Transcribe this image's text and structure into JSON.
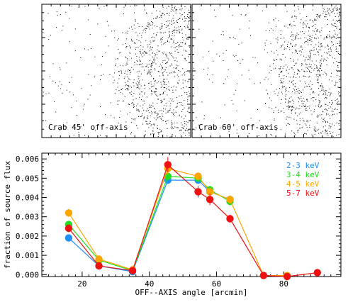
{
  "panels": [
    {
      "label": "Crab 45' off-axis"
    },
    {
      "label": "Crab 60' off-axis"
    }
  ],
  "chart_data": {
    "type": "line",
    "xlabel": "OFF--AXIS angle [arcmin]",
    "ylabel": "fraction of source flux",
    "xlim": [
      8,
      97
    ],
    "ylim": [
      -0.0001,
      0.0063
    ],
    "x_ticks": [
      20,
      40,
      60,
      80
    ],
    "y_ticks": [
      0.0,
      0.001,
      0.002,
      0.003,
      0.004,
      0.005,
      0.006
    ],
    "y_tick_labels": [
      "0.000",
      "0.001",
      "0.002",
      "0.003",
      "0.004",
      "0.005",
      "0.006"
    ],
    "legend_position": "top-right",
    "series": [
      {
        "name": "2-3 keV",
        "color": "#1e90ff",
        "x": [
          16,
          25,
          35,
          45.5,
          54.5,
          58,
          64
        ],
        "y": [
          0.0019,
          0.00045,
          0.00015,
          0.0049,
          0.0049,
          0.0043,
          0.0039
        ],
        "err": [
          0.0001,
          0.0001,
          5e-05,
          0.0002,
          0.0002,
          0.0002,
          0.0002
        ]
      },
      {
        "name": "3-4 keV",
        "color": "#22dd22",
        "x": [
          16,
          25,
          35,
          45.5,
          54.5,
          58,
          64
        ],
        "y": [
          0.0026,
          0.00075,
          0.0002,
          0.0051,
          0.005,
          0.0044,
          0.0038
        ],
        "err": [
          0.00015,
          0.0001,
          5e-05,
          0.0002,
          0.0002,
          0.0002,
          0.0002
        ]
      },
      {
        "name": "4-5 keV",
        "color": "#ffa500",
        "x": [
          16,
          25,
          35,
          45.5,
          54.5,
          58,
          64,
          74,
          81
        ],
        "y": [
          0.0032,
          0.0008,
          0.00025,
          0.0055,
          0.0051,
          0.0043,
          0.0039,
          -5e-05,
          -5e-05
        ],
        "err": [
          0.0002,
          0.0001,
          5e-05,
          0.0003,
          0.0002,
          0.0002,
          0.0002,
          5e-05,
          5e-05
        ]
      },
      {
        "name": "5-7 keV",
        "color": "#ee1111",
        "x": [
          16,
          25,
          35,
          45.5,
          54.5,
          58,
          64,
          74,
          81,
          90
        ],
        "y": [
          0.0024,
          0.00045,
          0.0002,
          0.0057,
          0.0043,
          0.0039,
          0.0029,
          -5e-05,
          -0.0001,
          0.0001
        ],
        "err": [
          0.0002,
          0.0001,
          5e-05,
          0.0004,
          0.0003,
          0.0003,
          0.0002,
          5e-05,
          5e-05,
          0.0001
        ]
      }
    ]
  }
}
